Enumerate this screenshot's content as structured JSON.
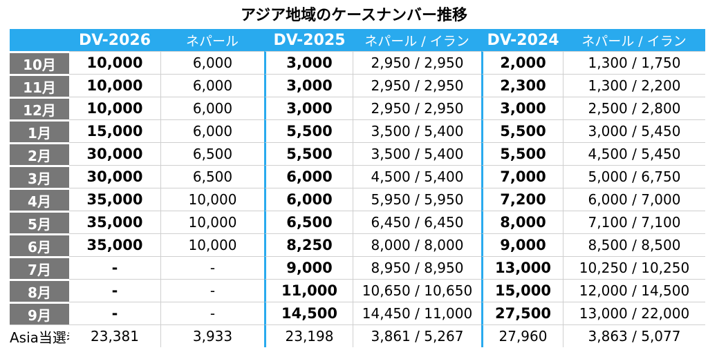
{
  "title": "アジア地域のケースナンバー推移",
  "header": {
    "dv2026": "DV-2026",
    "dv2026_sub": "ネパール",
    "dv2025": "DV-2025",
    "dv2025_sub": "ネパール / イラン",
    "dv2024": "DV-2024",
    "dv2024_sub": "ネパール / イラン"
  },
  "rows": [
    {
      "month": "10月",
      "dv2026": "10,000",
      "nepal2026": "6,000",
      "dv2025": "3,000",
      "sub2025": "2,950 / 2,950",
      "dv2024": "2,000",
      "sub2024": "1,300 / 1,750"
    },
    {
      "month": "11月",
      "dv2026": "10,000",
      "nepal2026": "6,000",
      "dv2025": "3,000",
      "sub2025": "2,950 / 2,950",
      "dv2024": "2,300",
      "sub2024": "1,300 / 2,200"
    },
    {
      "month": "12月",
      "dv2026": "10,000",
      "nepal2026": "6,000",
      "dv2025": "3,000",
      "sub2025": "2,950 / 2,950",
      "dv2024": "3,000",
      "sub2024": "2,500 / 2,800"
    },
    {
      "month": "1月",
      "dv2026": "15,000",
      "nepal2026": "6,000",
      "dv2025": "5,500",
      "sub2025": "3,500 / 5,400",
      "dv2024": "5,500",
      "sub2024": "3,000 / 5,450"
    },
    {
      "month": "2月",
      "dv2026": "30,000",
      "nepal2026": "6,500",
      "dv2025": "5,500",
      "sub2025": "3,500 / 5,400",
      "dv2024": "5,500",
      "sub2024": "4,500 / 5,450"
    },
    {
      "month": "3月",
      "dv2026": "30,000",
      "nepal2026": "6,500",
      "dv2025": "6,000",
      "sub2025": "4,500 / 5,400",
      "dv2024": "7,000",
      "sub2024": "5,000 / 6,750"
    },
    {
      "month": "4月",
      "dv2026": "35,000",
      "nepal2026": "10,000",
      "dv2025": "6,000",
      "sub2025": "5,950 / 5,950",
      "dv2024": "7,200",
      "sub2024": "6,000 / 7,000"
    },
    {
      "month": "5月",
      "dv2026": "35,000",
      "nepal2026": "10,000",
      "dv2025": "6,500",
      "sub2025": "6,450 / 6,450",
      "dv2024": "8,000",
      "sub2024": "7,100 / 7,100"
    },
    {
      "month": "6月",
      "dv2026": "35,000",
      "nepal2026": "10,000",
      "dv2025": "8,250",
      "sub2025": "8,000 / 8,000",
      "dv2024": "9,000",
      "sub2024": "8,500 / 8,500"
    },
    {
      "month": "7月",
      "dv2026": "-",
      "nepal2026": "-",
      "dv2025": "9,000",
      "sub2025": "8,950 / 8,950",
      "dv2024": "13,000",
      "sub2024": "10,250 / 10,250"
    },
    {
      "month": "8月",
      "dv2026": "-",
      "nepal2026": "-",
      "dv2025": "11,000",
      "sub2025": "10,650 / 10,650",
      "dv2024": "15,000",
      "sub2024": "12,000 / 14,500"
    },
    {
      "month": "9月",
      "dv2026": "-",
      "nepal2026": "-",
      "dv2025": "14,500",
      "sub2025": "14,450 / 11,000",
      "dv2024": "27,500",
      "sub2024": "13,000 / 22,000"
    }
  ],
  "totals": {
    "label": "Asia当選者",
    "dv2026": "23,381",
    "nepal2026": "3,933",
    "dv2025": "23,198",
    "sub2025": "3,861 / 5,267",
    "dv2024": "27,960",
    "sub2024": "3,863 / 5,077"
  },
  "colors": {
    "header_bg": "#29aaee",
    "month_bg": "#777777"
  }
}
